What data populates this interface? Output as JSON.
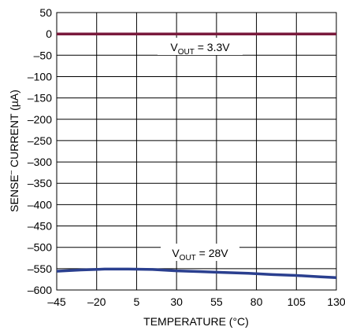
{
  "chart_data": {
    "type": "line",
    "xlabel": "TEMPERATURE (°C)",
    "ylabel_main": "SENSE",
    "ylabel_sup": "–",
    "ylabel_rest": " CURRENT (µA)",
    "xlim": [
      -45,
      130
    ],
    "ylim": [
      -600,
      50
    ],
    "grid": true,
    "x_ticks": [
      -45,
      -20,
      5,
      30,
      55,
      80,
      105,
      130
    ],
    "x_tick_labels": [
      "–45",
      "–20",
      "5",
      "30",
      "55",
      "80",
      "105",
      "130"
    ],
    "y_ticks": [
      50,
      0,
      -50,
      -100,
      -150,
      -200,
      -250,
      -300,
      -350,
      -400,
      -450,
      -500,
      -550,
      -600
    ],
    "y_tick_labels": [
      "50",
      "0",
      "–50",
      "–100",
      "–150",
      "–200",
      "–250",
      "–300",
      "–350",
      "–400",
      "–450",
      "–500",
      "–550",
      "–600"
    ],
    "series": [
      {
        "label_main": "V",
        "label_sub": "OUT",
        "label_rest": " = 3.3V",
        "color": "#7a1a3c",
        "x": [
          -45,
          -20,
          5,
          30,
          55,
          80,
          105,
          130
        ],
        "y": [
          0,
          0,
          0,
          0,
          0,
          0,
          0,
          0
        ]
      },
      {
        "label_main": "V",
        "label_sub": "OUT",
        "label_rest": " = 28V",
        "color": "#2a3f8f",
        "x": [
          -45,
          -30,
          -15,
          0,
          15,
          30,
          45,
          60,
          75,
          90,
          105,
          120,
          130
        ],
        "y": [
          -556,
          -553,
          -551,
          -551,
          -552,
          -555,
          -557,
          -559,
          -561,
          -564,
          -566,
          -569,
          -571
        ]
      }
    ]
  }
}
